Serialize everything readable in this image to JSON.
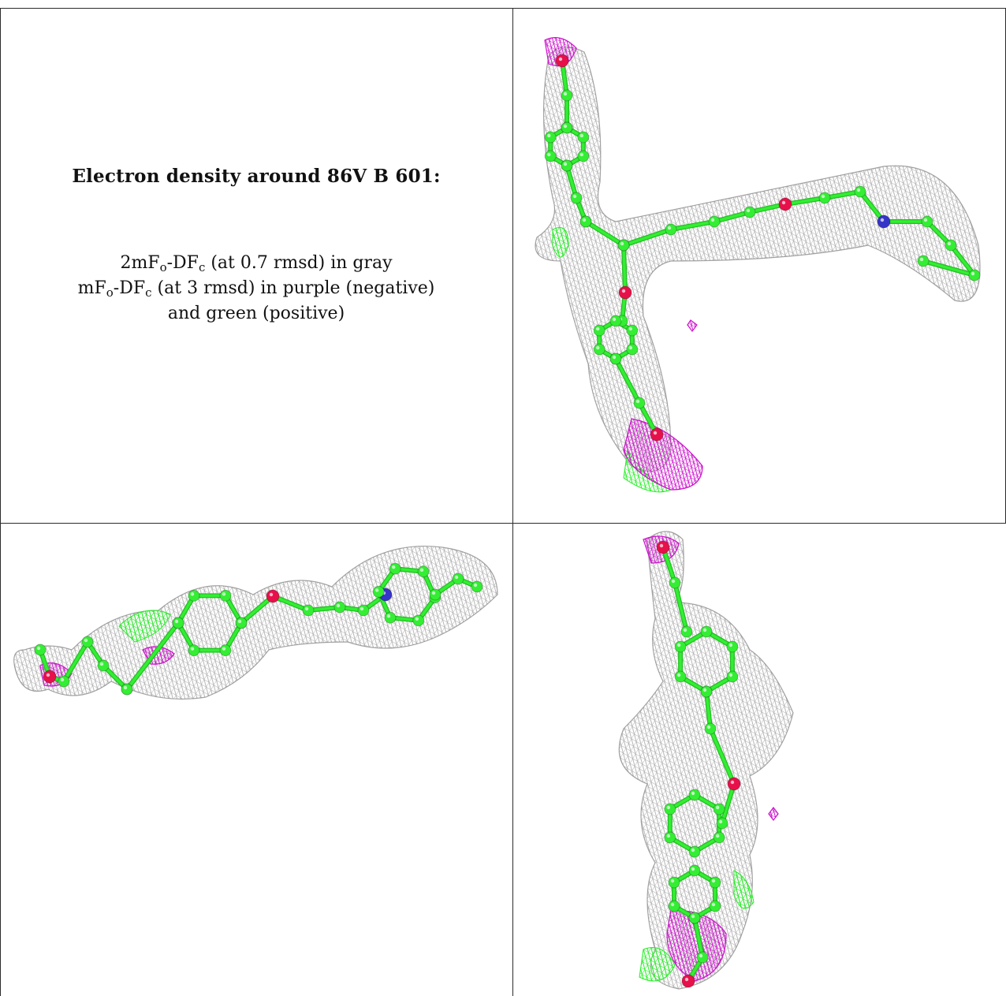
{
  "caption": {
    "title": "Electron density around 86V B 601:",
    "line1": {
      "prefix": "2mF",
      "sub_o": "o",
      "mid": "-DF",
      "sub_c": "c",
      "suffix": " (at 0.7 rmsd) in gray"
    },
    "line2": {
      "prefix": "mF",
      "sub_o": "o",
      "mid": "-DF",
      "sub_c": "c",
      "suffix": " (at 3 rmsd) in purple (negative)"
    },
    "line3": "and green (positive)"
  },
  "colors": {
    "mesh_gray": "#a9a9a9",
    "negative_purple": "#cc11cc",
    "positive_green": "#22ee22",
    "atom_green": "#33ee33",
    "oxygen_red": "#e8104a",
    "nitrogen_blue": "#3535c8",
    "border": "#2b2b2b"
  },
  "panels": [
    {
      "id": "top-right",
      "view": "molecule-view-1"
    },
    {
      "id": "bottom-left",
      "view": "molecule-view-2"
    },
    {
      "id": "bottom-right",
      "view": "molecule-view-3"
    }
  ]
}
